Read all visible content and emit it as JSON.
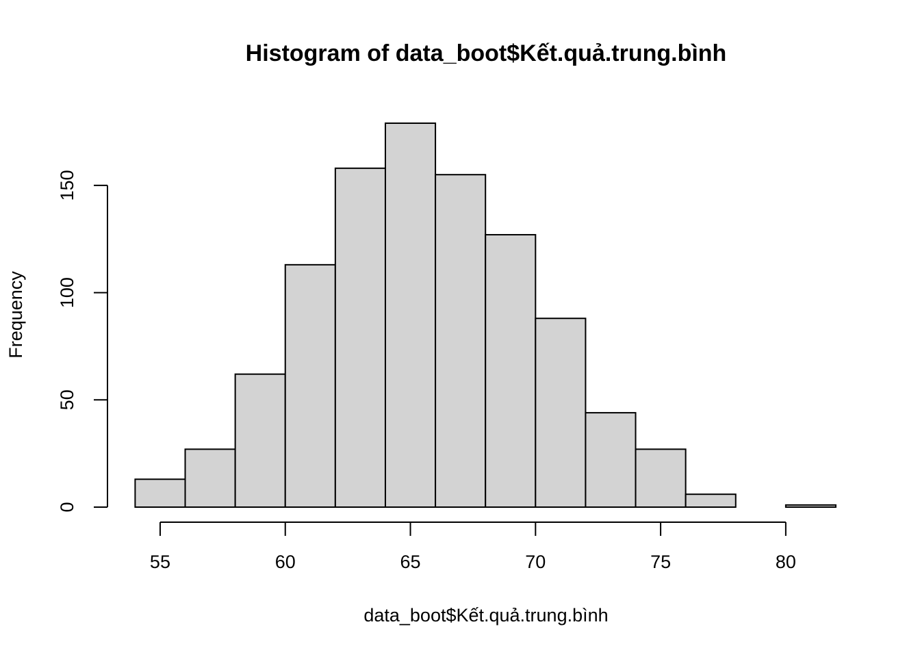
{
  "chart_data": {
    "type": "histogram",
    "title": "Histogram of data_boot$Kết.quả.trung.bình",
    "x_label": "data_boot$Kết.quả.trung.bình",
    "y_label": "Frequency",
    "bins": [
      54,
      56,
      58,
      60,
      62,
      64,
      66,
      68,
      70,
      72,
      74,
      76,
      78,
      80,
      82
    ],
    "values": [
      13,
      27,
      62,
      113,
      158,
      179,
      155,
      127,
      88,
      44,
      27,
      6,
      0,
      1
    ],
    "color": "#d3d3d3",
    "xlim": [
      54,
      82
    ],
    "xticks": [
      55,
      60,
      65,
      70,
      75,
      80
    ],
    "ylim": [
      0,
      179
    ],
    "yticks": [
      0,
      50,
      100,
      150
    ]
  }
}
